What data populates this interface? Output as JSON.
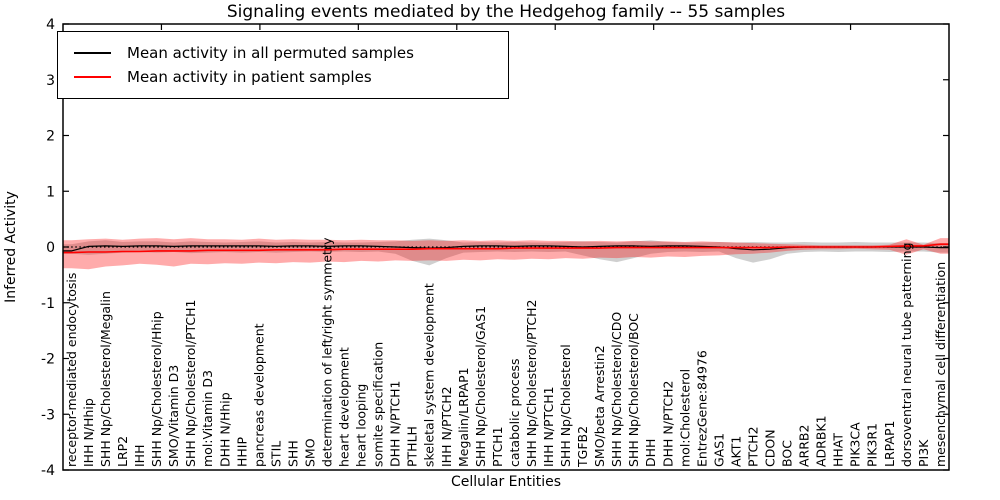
{
  "chart_data": {
    "type": "line",
    "title": "Signaling events mediated by the Hedgehog family -- 55 samples",
    "xlabel": "Cellular Entities",
    "ylabel": "Inferred Activity",
    "ylim": [
      -4,
      4
    ],
    "yticks": [
      4,
      3,
      2,
      1,
      0,
      -1,
      -2,
      -3,
      -4
    ],
    "grid": false,
    "zero_reference_line": "dotted",
    "legend_position": "upper left",
    "categories": [
      "receptor-mediated endocytosis",
      "IHH N/Hhip",
      "SHH Np/Cholesterol/Megalin",
      "LRP2",
      "IHH",
      "SHH Np/Cholesterol/Hhip",
      "SMO/Vitamin D3",
      "SHH Np/Cholesterol/PTCH1",
      "mol:Vitamin D3",
      "DHH N/Hhip",
      "HHIP",
      "pancreas development",
      "STIL",
      "SHH",
      "SMO",
      "determination of left/right symmetry",
      "heart development",
      "heart looping",
      "somite specification",
      "DHH N/PTCH1",
      "PTHLH",
      "skeletal system development",
      "IHH N/PTCH2",
      "Megalin/LRPAP1",
      "SHH Np/Cholesterol/GAS1",
      "PTCH1",
      "catabolic process",
      "SHH Np/Cholesterol/PTCH2",
      "IHH N/PTCH1",
      "SHH Np/Cholesterol",
      "TGFB2",
      "SMO/beta Arrestin2",
      "SHH Np/Cholesterol/CDO",
      "SHH Np/Cholesterol/BOC",
      "DHH",
      "DHH N/PTCH2",
      "mol:Cholesterol",
      "EntrezGene:84976",
      "GAS1",
      "AKT1",
      "PTCH2",
      "CDON",
      "BOC",
      "ARRB2",
      "ADRBK1",
      "HHAT",
      "PIK3CA",
      "PIK3R1",
      "LRPAP1",
      "dorsoventral neural tube patterning",
      "PI3K",
      "mesenchymal cell differentiation"
    ],
    "series": [
      {
        "name": "Mean activity in all permuted samples",
        "color": "#000000",
        "values": [
          -0.07,
          0.01,
          0.02,
          0.01,
          0.02,
          0.02,
          0.01,
          0.02,
          0.02,
          0.02,
          0.02,
          0.02,
          0.01,
          0.02,
          0.02,
          0.01,
          0.02,
          0.02,
          0.01,
          0,
          -0.01,
          -0.02,
          -0.01,
          0.01,
          0.02,
          0.02,
          0.01,
          0.02,
          0.02,
          0.01,
          0,
          0.01,
          0.02,
          0.02,
          0.01,
          0.02,
          0.02,
          0.01,
          0,
          -0.03,
          -0.05,
          -0.04,
          -0.01,
          0,
          0,
          0,
          0,
          0,
          0,
          0,
          0,
          -0.01
        ]
      },
      {
        "name": "Mean activity in patient samples",
        "color": "#ff0000",
        "values": [
          -0.1,
          -0.09,
          -0.09,
          -0.08,
          -0.08,
          -0.07,
          -0.07,
          -0.07,
          -0.06,
          -0.06,
          -0.06,
          -0.06,
          -0.05,
          -0.05,
          -0.05,
          -0.05,
          -0.04,
          -0.04,
          -0.04,
          -0.04,
          -0.04,
          -0.03,
          -0.03,
          -0.03,
          -0.03,
          -0.03,
          -0.02,
          -0.02,
          -0.02,
          -0.02,
          -0.02,
          -0.02,
          -0.01,
          -0.01,
          -0.01,
          -0.01,
          -0.01,
          -0.01,
          -0.01,
          -0.01,
          -0.01,
          -0.01,
          0,
          0,
          0,
          0,
          0,
          0,
          0.01,
          0.02,
          0.02,
          0.05
        ]
      }
    ],
    "bands": [
      {
        "name": "permuted-samples-range",
        "color": "#808080",
        "opacity": 0.38,
        "lower": [
          -0.12,
          -0.14,
          -0.12,
          -0.1,
          -0.09,
          -0.1,
          -0.09,
          -0.11,
          -0.1,
          -0.09,
          -0.1,
          -0.09,
          -0.1,
          -0.09,
          -0.08,
          -0.09,
          -0.08,
          -0.09,
          -0.08,
          -0.12,
          -0.25,
          -0.33,
          -0.2,
          -0.1,
          -0.09,
          -0.08,
          -0.09,
          -0.08,
          -0.09,
          -0.08,
          -0.15,
          -0.22,
          -0.27,
          -0.2,
          -0.12,
          -0.09,
          -0.08,
          -0.09,
          -0.08,
          -0.2,
          -0.28,
          -0.22,
          -0.12,
          -0.09,
          -0.08,
          -0.09,
          -0.08,
          -0.08,
          -0.09,
          -0.08,
          -0.08,
          -0.1
        ],
        "upper": [
          0.05,
          0.1,
          0.12,
          0.09,
          0.1,
          0.1,
          0.08,
          0.1,
          0.09,
          0.08,
          0.09,
          0.1,
          0.08,
          0.09,
          0.08,
          0.09,
          0.08,
          0.08,
          0.09,
          0.1,
          0.13,
          0.15,
          0.12,
          0.08,
          0.09,
          0.08,
          0.09,
          0.08,
          0.08,
          0.09,
          0.1,
          0.09,
          0.08,
          0.1,
          0.12,
          0.09,
          0.08,
          0.08,
          0.09,
          0.08,
          0.09,
          0.08,
          0.08,
          0.09,
          0.08,
          0.08,
          0.09,
          0.08,
          0.08,
          0.08,
          0.08,
          0.07
        ]
      },
      {
        "name": "patient-samples-range",
        "color": "#ff0000",
        "opacity": 0.33,
        "lower": [
          -0.38,
          -0.4,
          -0.35,
          -0.33,
          -0.3,
          -0.32,
          -0.35,
          -0.3,
          -0.31,
          -0.29,
          -0.3,
          -0.28,
          -0.29,
          -0.27,
          -0.28,
          -0.26,
          -0.27,
          -0.25,
          -0.26,
          -0.24,
          -0.25,
          -0.24,
          -0.25,
          -0.23,
          -0.24,
          -0.22,
          -0.23,
          -0.21,
          -0.22,
          -0.2,
          -0.21,
          -0.19,
          -0.2,
          -0.18,
          -0.19,
          -0.17,
          -0.18,
          -0.16,
          -0.15,
          -0.13,
          -0.12,
          -0.1,
          -0.07,
          -0.05,
          -0.04,
          -0.04,
          -0.03,
          -0.04,
          -0.05,
          -0.14,
          -0.04,
          -0.12
        ],
        "upper": [
          0.12,
          0.14,
          0.15,
          0.13,
          0.15,
          0.16,
          0.14,
          0.16,
          0.14,
          0.14,
          0.13,
          0.15,
          0.13,
          0.14,
          0.13,
          0.13,
          0.12,
          0.13,
          0.12,
          0.12,
          0.11,
          0.12,
          0.11,
          0.12,
          0.11,
          0.12,
          0.11,
          0.12,
          0.11,
          0.11,
          0.1,
          0.11,
          0.1,
          0.11,
          0.1,
          0.1,
          0.09,
          0.1,
          0.09,
          0.08,
          0.07,
          0.06,
          0.05,
          0.04,
          0.03,
          0.03,
          0.03,
          0.03,
          0.04,
          0.14,
          0.04,
          0.16
        ]
      }
    ]
  }
}
